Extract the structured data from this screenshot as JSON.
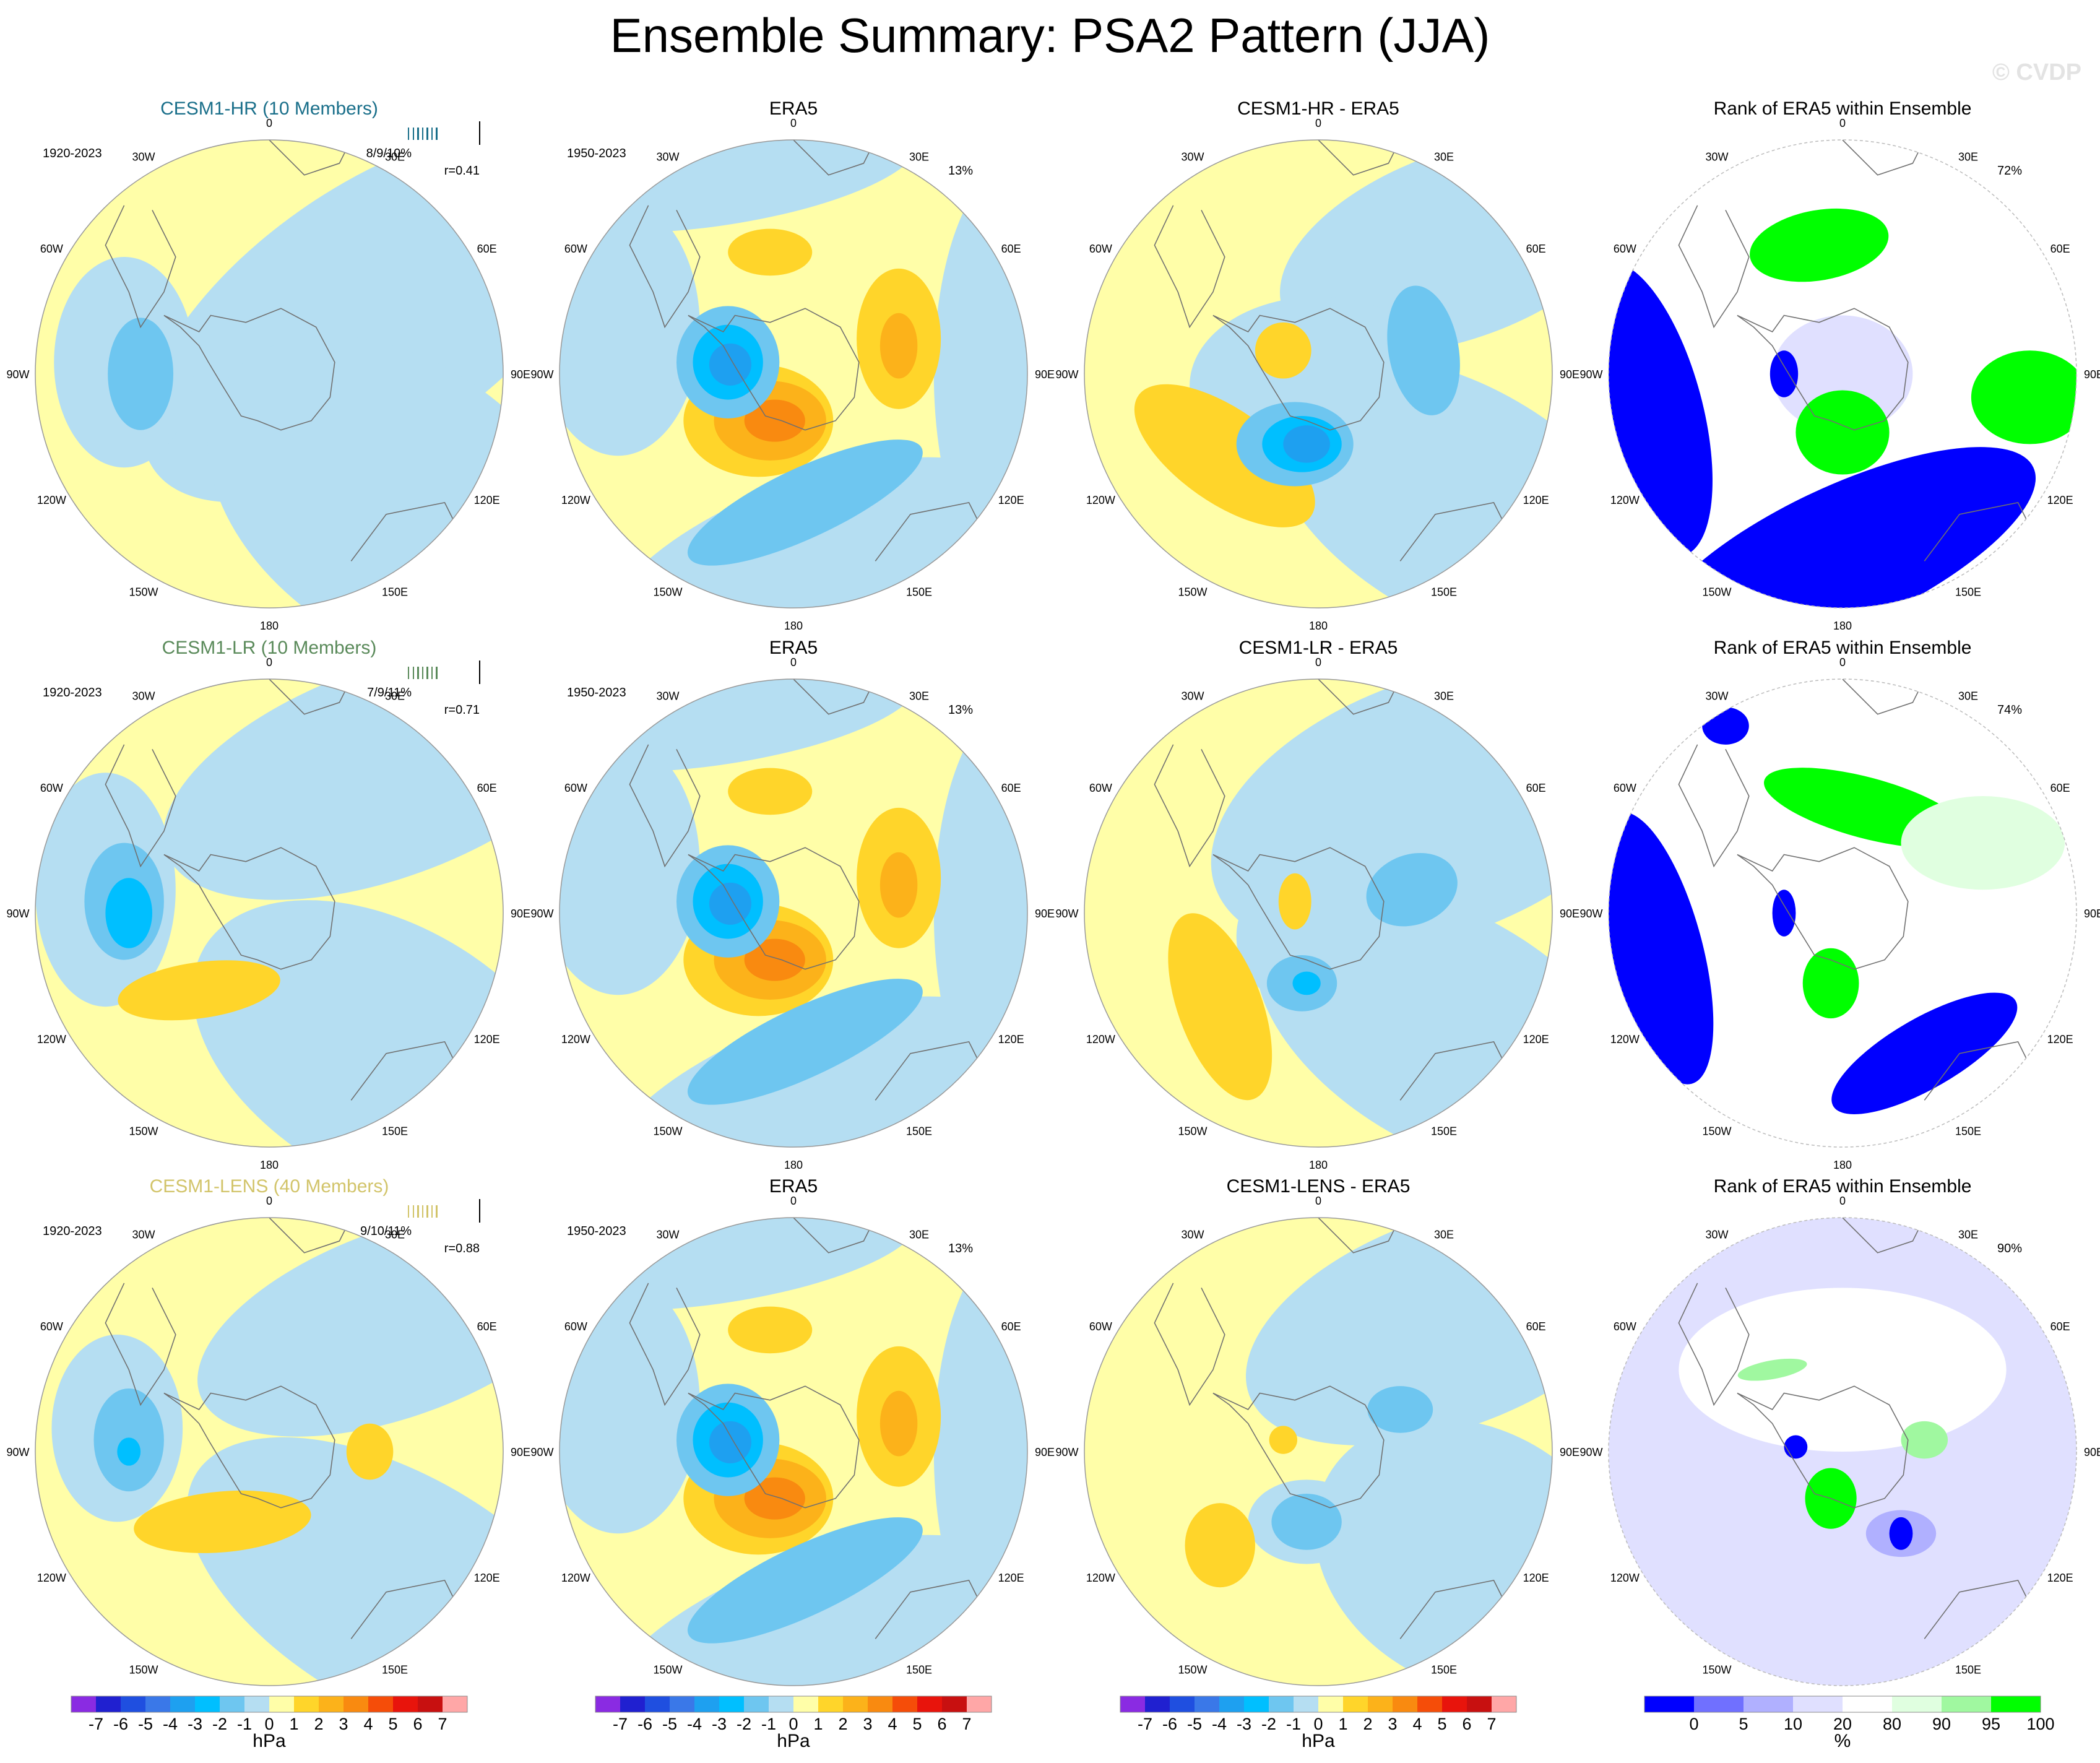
{
  "title": "Ensemble Summary: PSA2 Pattern (JJA)",
  "watermark": "© CVDP",
  "colors": {
    "model_hr": "#1a6f8a",
    "model_lr": "#5a8a5a",
    "model_lens": "#d2c46a"
  },
  "lon_labels": [
    "0",
    "30E",
    "60E",
    "90E",
    "120E",
    "150E",
    "180",
    "150W",
    "120W",
    "90W",
    "60W",
    "30W"
  ],
  "colorbars": {
    "hpa": {
      "labels": [
        "-7",
        "-6",
        "-5",
        "-4",
        "-3",
        "-2",
        "-1",
        "0",
        "1",
        "2",
        "3",
        "4",
        "5",
        "6",
        "7"
      ],
      "colors": [
        "#8a2be2",
        "#2020d0",
        "#1f4fe0",
        "#3a78e8",
        "#1ea0f0",
        "#00bfff",
        "#6ec6f0",
        "#b5def2",
        "#fffea8",
        "#ffd52a",
        "#fcb21a",
        "#f98a10",
        "#f54d09",
        "#e8140c",
        "#c81010",
        "#ffa7a7"
      ],
      "unit": "hPa"
    },
    "pct": {
      "labels": [
        "0",
        "5",
        "10",
        "20",
        "80",
        "90",
        "95",
        "100"
      ],
      "colors": [
        "#0000ff",
        "#7070ff",
        "#b0b0ff",
        "#e0e0ff",
        "#ffffff",
        "#e0ffe0",
        "#a0f8a0",
        "#00ff00"
      ],
      "unit": "%"
    }
  },
  "chart_data": [
    {
      "type": "heatmap",
      "row": 1,
      "col": 1,
      "title": "CESM1-HR (10 Members)",
      "period": "1920-2023",
      "stats": "8/9/10%",
      "r": "r=0.41",
      "variable": "PSA2 pattern",
      "units": "hPa",
      "range": [
        -7,
        7
      ]
    },
    {
      "type": "heatmap",
      "row": 1,
      "col": 2,
      "title": "ERA5",
      "period": "1950-2023",
      "pct": "13%",
      "variable": "PSA2 pattern",
      "units": "hPa",
      "range": [
        -7,
        7
      ]
    },
    {
      "type": "heatmap",
      "row": 1,
      "col": 3,
      "title": "CESM1-HR - ERA5",
      "variable": "PSA2 pattern difference",
      "units": "hPa",
      "range": [
        -7,
        7
      ]
    },
    {
      "type": "heatmap",
      "row": 1,
      "col": 4,
      "title": "Rank of ERA5 within Ensemble",
      "pct": "72%",
      "units": "%",
      "range": [
        0,
        100
      ]
    },
    {
      "type": "heatmap",
      "row": 2,
      "col": 1,
      "title": "CESM1-LR (10 Members)",
      "period": "1920-2023",
      "stats": "7/9/11%",
      "r": "r=0.71",
      "variable": "PSA2 pattern",
      "units": "hPa",
      "range": [
        -7,
        7
      ]
    },
    {
      "type": "heatmap",
      "row": 2,
      "col": 2,
      "title": "ERA5",
      "period": "1950-2023",
      "pct": "13%",
      "variable": "PSA2 pattern",
      "units": "hPa",
      "range": [
        -7,
        7
      ]
    },
    {
      "type": "heatmap",
      "row": 2,
      "col": 3,
      "title": "CESM1-LR - ERA5",
      "variable": "PSA2 pattern difference",
      "units": "hPa",
      "range": [
        -7,
        7
      ]
    },
    {
      "type": "heatmap",
      "row": 2,
      "col": 4,
      "title": "Rank of ERA5 within Ensemble",
      "pct": "74%",
      "units": "%",
      "range": [
        0,
        100
      ]
    },
    {
      "type": "heatmap",
      "row": 3,
      "col": 1,
      "title": "CESM1-LENS (40 Members)",
      "period": "1920-2023",
      "stats": "9/10/11%",
      "r": "r=0.88",
      "variable": "PSA2 pattern",
      "units": "hPa",
      "range": [
        -7,
        7
      ]
    },
    {
      "type": "heatmap",
      "row": 3,
      "col": 2,
      "title": "ERA5",
      "period": "1950-2023",
      "pct": "13%",
      "variable": "PSA2 pattern",
      "units": "hPa",
      "range": [
        -7,
        7
      ]
    },
    {
      "type": "heatmap",
      "row": 3,
      "col": 3,
      "title": "CESM1-LENS - ERA5",
      "variable": "PSA2 pattern difference",
      "units": "hPa",
      "range": [
        -7,
        7
      ]
    },
    {
      "type": "heatmap",
      "row": 3,
      "col": 4,
      "title": "Rank of ERA5 within Ensemble",
      "pct": "90%",
      "units": "%",
      "range": [
        0,
        100
      ]
    }
  ]
}
